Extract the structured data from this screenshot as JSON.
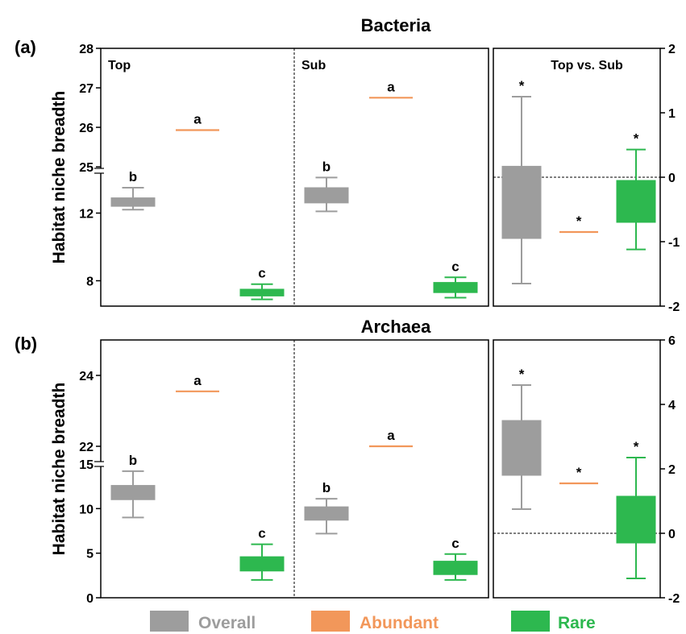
{
  "colors": {
    "Overall": "#9d9d9d",
    "Abundant": "#f2975a",
    "Rare": "#2db84f"
  },
  "legend": [
    "Overall",
    "Abundant",
    "Rare"
  ],
  "chart_data": [
    {
      "id": "bacteria",
      "tag": "(a)",
      "title": "Bacteria",
      "type": "box",
      "ylabel": "Habitat niche breadth",
      "left_axis": {
        "segments": [
          {
            "range": [
              6.5,
              14.5
            ],
            "ticks": [
              8,
              12
            ]
          },
          {
            "range": [
              24.9,
              28
            ],
            "ticks": [
              25,
              26,
              27,
              28
            ]
          }
        ]
      },
      "right_axis": {
        "range": [
          -2,
          2
        ],
        "ticks": [
          -2,
          -1,
          0,
          1,
          2
        ]
      },
      "groups": [
        {
          "label": "Top",
          "boxes": [
            {
              "name": "Overall",
              "whisker_low": 12.2,
              "q1": 12.4,
              "median": 12.6,
              "q3": 12.9,
              "whisker_high": 13.5,
              "letter": "b"
            },
            {
              "name": "Abundant",
              "value": 25.93,
              "letter": "a"
            },
            {
              "name": "Rare",
              "whisker_low": 6.9,
              "q1": 7.1,
              "median": 7.3,
              "q3": 7.5,
              "whisker_high": 7.8,
              "letter": "c"
            }
          ]
        },
        {
          "label": "Sub",
          "boxes": [
            {
              "name": "Overall",
              "whisker_low": 12.1,
              "q1": 12.6,
              "median": 13.1,
              "q3": 13.5,
              "whisker_high": 14.1,
              "letter": "b"
            },
            {
              "name": "Abundant",
              "value": 26.75,
              "letter": "a"
            },
            {
              "name": "Rare",
              "whisker_low": 7.0,
              "q1": 7.3,
              "median": 7.55,
              "q3": 7.9,
              "whisker_high": 8.2,
              "letter": "c"
            }
          ]
        }
      ],
      "difference": {
        "label": "Top vs. Sub",
        "boxes": [
          {
            "name": "Overall",
            "whisker_low": -1.65,
            "q1": -0.95,
            "median": -0.2,
            "q3": 0.17,
            "whisker_high": 1.25,
            "mark": "*"
          },
          {
            "name": "Abundant",
            "value": -0.85,
            "mark": "*"
          },
          {
            "name": "Rare",
            "whisker_low": -1.12,
            "q1": -0.7,
            "median": -0.35,
            "q3": -0.05,
            "whisker_high": 0.43,
            "mark": "*"
          }
        ]
      }
    },
    {
      "id": "archaea",
      "tag": "(b)",
      "title": "Archaea",
      "type": "box",
      "ylabel": "Habitat niche breadth",
      "left_axis": {
        "segments": [
          {
            "range": [
              0,
              15
            ],
            "ticks": [
              0,
              5,
              10,
              15
            ]
          },
          {
            "range": [
              21.5,
              25
            ],
            "ticks": [
              22,
              24
            ]
          }
        ]
      },
      "right_axis": {
        "range": [
          -2,
          6
        ],
        "ticks": [
          -2,
          0,
          2,
          4,
          6
        ]
      },
      "groups": [
        {
          "label": "",
          "boxes": [
            {
              "name": "Overall",
              "whisker_low": 9.0,
              "q1": 11.0,
              "median": 11.8,
              "q3": 12.6,
              "whisker_high": 14.2,
              "letter": "b"
            },
            {
              "name": "Abundant",
              "value": 23.55,
              "letter": "a"
            },
            {
              "name": "Rare",
              "whisker_low": 2.0,
              "q1": 3.0,
              "median": 3.8,
              "q3": 4.6,
              "whisker_high": 6.0,
              "letter": "c"
            }
          ]
        },
        {
          "label": "",
          "boxes": [
            {
              "name": "Overall",
              "whisker_low": 7.2,
              "q1": 8.7,
              "median": 9.5,
              "q3": 10.2,
              "whisker_high": 11.1,
              "letter": "b"
            },
            {
              "name": "Abundant",
              "value": 22.0,
              "letter": "a"
            },
            {
              "name": "Rare",
              "whisker_low": 2.0,
              "q1": 2.6,
              "median": 3.2,
              "q3": 4.1,
              "whisker_high": 4.9,
              "letter": "c"
            }
          ]
        }
      ],
      "difference": {
        "label": "",
        "boxes": [
          {
            "name": "Overall",
            "whisker_low": 0.75,
            "q1": 1.8,
            "median": 2.8,
            "q3": 3.5,
            "whisker_high": 4.6,
            "mark": "*"
          },
          {
            "name": "Abundant",
            "value": 1.55,
            "mark": "*"
          },
          {
            "name": "Rare",
            "whisker_low": -1.4,
            "q1": -0.3,
            "median": 0.4,
            "q3": 1.15,
            "whisker_high": 2.35,
            "mark": "*"
          }
        ]
      }
    }
  ]
}
